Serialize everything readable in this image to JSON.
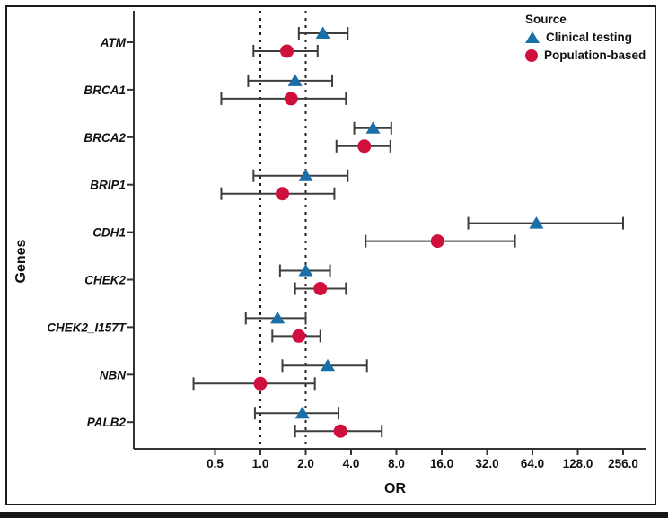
{
  "chart_data": {
    "type": "forest",
    "xlabel": "OR",
    "ylabel": "Genes",
    "x_scale": "log2",
    "x_ticks": [
      0.5,
      1.0,
      2.0,
      4.0,
      8.0,
      16.0,
      32.0,
      64.0,
      128.0,
      256.0
    ],
    "x_tick_labels": [
      "0.5",
      "1.0",
      "2.0",
      "4.0",
      "8.0",
      "16.0",
      "32.0",
      "64.0",
      "128.0",
      "256.0"
    ],
    "reference_lines": [
      1.0,
      2.0
    ],
    "categories": [
      "ATM",
      "BRCA1",
      "BRCA2",
      "BRIP1",
      "CDH1",
      "CHEK2",
      "CHEK2_I157T",
      "NBN",
      "PALB2"
    ],
    "series": [
      {
        "name": "Clinical testing",
        "marker": "triangle",
        "color": "#1b6fa8",
        "values": [
          2.6,
          1.7,
          5.6,
          2.0,
          68,
          2.0,
          1.3,
          2.8,
          1.9
        ],
        "ci_low": [
          1.8,
          0.83,
          4.2,
          0.9,
          24,
          1.35,
          0.8,
          1.4,
          0.92
        ],
        "ci_high": [
          3.8,
          3.0,
          7.4,
          3.8,
          256,
          2.9,
          2.0,
          5.1,
          3.3
        ]
      },
      {
        "name": "Population-based",
        "marker": "circle",
        "color": "#d0103c",
        "values": [
          1.5,
          1.6,
          4.9,
          1.4,
          15,
          2.5,
          1.8,
          1.0,
          3.4
        ],
        "ci_low": [
          0.9,
          0.55,
          3.2,
          0.55,
          5.0,
          1.7,
          1.2,
          0.36,
          1.7
        ],
        "ci_high": [
          2.4,
          3.7,
          7.3,
          3.1,
          49,
          3.7,
          2.5,
          2.3,
          6.4
        ]
      }
    ],
    "legend": {
      "title": "Source",
      "position": "top-right"
    },
    "grid": "off",
    "error_bar_color": "#3d3d3d",
    "axis_color": "#333333",
    "text_color": "#111111"
  }
}
